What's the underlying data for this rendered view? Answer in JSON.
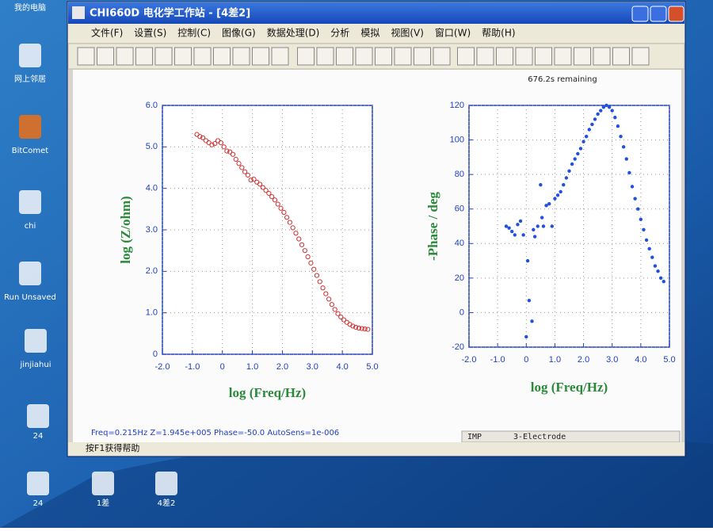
{
  "desktop": {
    "icons": [
      "我的电脑",
      "网上邻居",
      "BitComet",
      "chi",
      "Run Unsaved",
      "jinjiahui",
      "24",
      "24",
      "1差",
      "4差2"
    ]
  },
  "window": {
    "title": "CHI660D 电化学工作站 - [4差2]",
    "menu": [
      "文件(F)",
      "设置(S)",
      "控制(C)",
      "图像(G)",
      "数据处理(D)",
      "分析",
      "模拟",
      "视图(V)",
      "窗口(W)",
      "帮助(H)"
    ],
    "remaining": "676.2s remaining",
    "status": "Freq=0.215Hz  Z=1.945e+005  Phase=-50.0  AutoSens=1e-006",
    "mode": "IMP",
    "electrode": "3-Electrode",
    "help": "按F1获得帮助"
  },
  "chart_data": [
    {
      "type": "scatter",
      "x_label": "log (Freq/Hz)",
      "y_label": "log (Z/ohm)",
      "color": "#d03030",
      "filled": false,
      "grid": true,
      "xlim": [
        -2,
        5
      ],
      "ylim": [
        0,
        6
      ],
      "xticks": [
        {
          "value": -2,
          "label": "-2.0"
        },
        {
          "value": -1,
          "label": "-1.0"
        },
        {
          "value": 0,
          "label": "0"
        },
        {
          "value": 1,
          "label": "1.0"
        },
        {
          "value": 2,
          "label": "2.0"
        },
        {
          "value": 3,
          "label": "3.0"
        },
        {
          "value": 4,
          "label": "4.0"
        },
        {
          "value": 5,
          "label": "5.0"
        }
      ],
      "yticks": [
        0,
        {
          "value": 1,
          "label": "1.0"
        },
        {
          "value": 2,
          "label": "2.0"
        },
        {
          "value": 3,
          "label": "3.0"
        },
        {
          "value": 4,
          "label": "4.0"
        },
        {
          "value": 5,
          "label": "5.0"
        },
        {
          "value": 6,
          "label": "6.0"
        }
      ],
      "x": [
        -0.85,
        -0.75,
        -0.65,
        -0.55,
        -0.45,
        -0.35,
        -0.25,
        -0.15,
        -0.05,
        0.05,
        0.15,
        0.25,
        0.35,
        0.45,
        0.55,
        0.65,
        0.75,
        0.85,
        0.95,
        1.05,
        1.15,
        1.25,
        1.35,
        1.45,
        1.55,
        1.65,
        1.75,
        1.85,
        1.95,
        2.05,
        2.15,
        2.25,
        2.35,
        2.45,
        2.55,
        2.65,
        2.75,
        2.85,
        2.95,
        3.05,
        3.15,
        3.25,
        3.35,
        3.45,
        3.55,
        3.65,
        3.75,
        3.85,
        3.95,
        4.05,
        4.15,
        4.25,
        4.35,
        4.45,
        4.55,
        4.65,
        4.75,
        4.85
      ],
      "values": [
        5.3,
        5.25,
        5.22,
        5.15,
        5.1,
        5.05,
        5.08,
        5.15,
        5.1,
        5.0,
        4.9,
        4.88,
        4.82,
        4.7,
        4.6,
        4.5,
        4.4,
        4.32,
        4.2,
        4.22,
        4.15,
        4.1,
        4.02,
        3.95,
        3.88,
        3.8,
        3.72,
        3.62,
        3.52,
        3.42,
        3.3,
        3.18,
        3.05,
        2.92,
        2.78,
        2.64,
        2.5,
        2.35,
        2.2,
        2.05,
        1.9,
        1.75,
        1.6,
        1.46,
        1.33,
        1.2,
        1.08,
        0.98,
        0.9,
        0.83,
        0.77,
        0.72,
        0.68,
        0.65,
        0.63,
        0.62,
        0.61,
        0.6
      ]
    },
    {
      "type": "scatter",
      "x_label": "log (Freq/Hz)",
      "y_label": "-Phase / deg",
      "color": "#2050e0",
      "filled": true,
      "grid": true,
      "xlim": [
        -2,
        5
      ],
      "ylim": [
        -20,
        120
      ],
      "xticks": [
        {
          "value": -2,
          "label": "-2.0"
        },
        {
          "value": -1,
          "label": "-1.0"
        },
        {
          "value": 0,
          "label": "0"
        },
        {
          "value": 1,
          "label": "1.0"
        },
        {
          "value": 2,
          "label": "2.0"
        },
        {
          "value": 3,
          "label": "3.0"
        },
        {
          "value": 4,
          "label": "4.0"
        },
        {
          "value": 5,
          "label": "5.0"
        }
      ],
      "yticks": [
        -20,
        0,
        20,
        40,
        60,
        80,
        100,
        120
      ],
      "x": [
        -0.7,
        -0.6,
        -0.5,
        -0.4,
        -0.3,
        -0.2,
        -0.1,
        0.0,
        0.05,
        0.1,
        0.2,
        0.25,
        0.3,
        0.4,
        0.5,
        0.55,
        0.6,
        0.7,
        0.8,
        0.9,
        1.0,
        1.1,
        1.2,
        1.3,
        1.4,
        1.5,
        1.6,
        1.7,
        1.8,
        1.9,
        2.0,
        2.1,
        2.2,
        2.3,
        2.4,
        2.5,
        2.6,
        2.7,
        2.8,
        2.9,
        3.0,
        3.1,
        3.2,
        3.3,
        3.4,
        3.5,
        3.6,
        3.7,
        3.8,
        3.9,
        4.0,
        4.1,
        4.2,
        4.3,
        4.4,
        4.5,
        4.6,
        4.7,
        4.8
      ],
      "values": [
        50,
        49,
        47,
        45,
        51,
        53,
        45,
        -14,
        30,
        7,
        -5,
        48,
        44,
        50,
        74,
        55,
        50,
        62,
        63,
        50,
        66,
        68,
        70,
        74,
        78,
        82,
        86,
        89,
        92,
        95,
        99,
        102,
        106,
        109,
        112,
        115,
        117,
        119,
        120,
        119,
        117,
        113,
        108,
        102,
        96,
        89,
        81,
        73,
        66,
        60,
        54,
        48,
        42,
        37,
        32,
        27,
        24,
        20,
        18
      ]
    }
  ]
}
